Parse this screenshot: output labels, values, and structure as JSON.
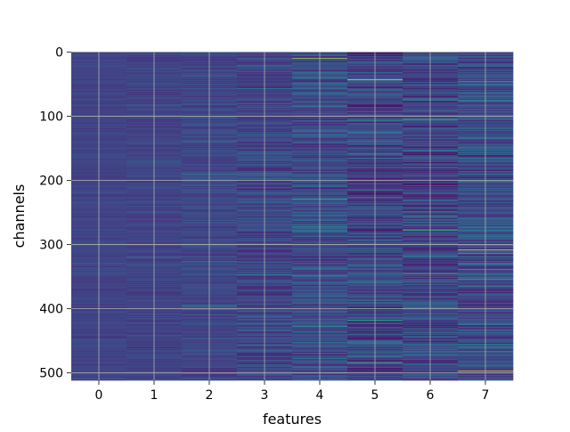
{
  "chart_data": {
    "type": "heatmap",
    "title": "",
    "xlabel": "features",
    "ylabel": "channels",
    "x_categories": [
      "0",
      "1",
      "2",
      "3",
      "4",
      "5",
      "6",
      "7"
    ],
    "n_rows": 512,
    "y_axis_inverted": true,
    "ylim": [
      511.5,
      -0.5
    ],
    "y_ticks": [
      "0",
      "100",
      "200",
      "300",
      "400",
      "500"
    ],
    "grid": true,
    "colormap": "viridis",
    "column_value_spread": [
      0.04,
      0.05,
      0.07,
      0.11,
      0.13,
      0.16,
      0.16,
      0.15
    ],
    "column_value_means": [
      0.2,
      0.2,
      0.21,
      0.21,
      0.23,
      0.21,
      0.21,
      0.23
    ],
    "bright_lines": [
      {
        "feature": "4",
        "channel": 10,
        "value": 0.85
      },
      {
        "feature": "5",
        "channel": 43,
        "value": 0.95
      },
      {
        "feature": "6",
        "channel": 0,
        "value": 0.9
      },
      {
        "feature": "7",
        "channel": 308,
        "value": 0.95
      },
      {
        "feature": "7",
        "channel": 497,
        "value": 0.95
      }
    ],
    "colors": {
      "viridis_stops": [
        "#440154",
        "#482878",
        "#3e4989",
        "#31688e",
        "#26828e",
        "#1f9e89",
        "#35b779",
        "#6ece58",
        "#b5de2b",
        "#fde725"
      ],
      "grid": "#b0b0b0",
      "axes_frame": "#000000"
    }
  }
}
